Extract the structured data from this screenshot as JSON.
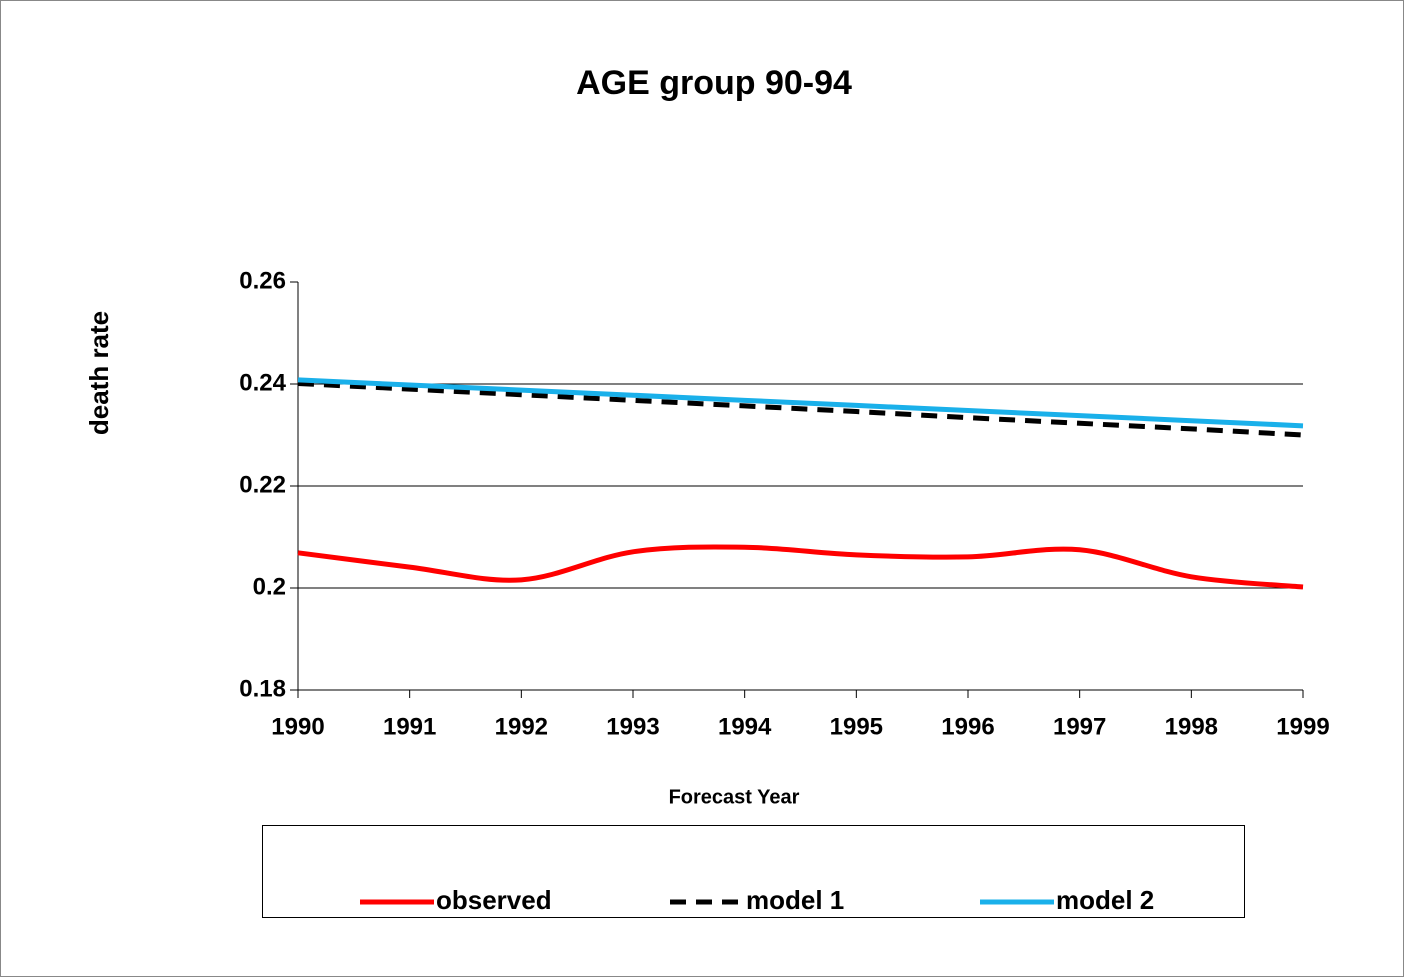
{
  "chart_data": {
    "type": "line",
    "title": "AGE group 90-94",
    "x_label": "Forecast Year",
    "y_label": "death rate",
    "x": [
      1990,
      1991,
      1992,
      1993,
      1994,
      1995,
      1996,
      1997,
      1998,
      1999
    ],
    "xlim": [
      1990,
      1999
    ],
    "xticks": [
      1990,
      1991,
      1992,
      1993,
      1994,
      1995,
      1996,
      1997,
      1998,
      1999
    ],
    "ylim": [
      0.18,
      0.26
    ],
    "yticks": [
      0.18,
      0.2,
      0.22,
      0.24,
      0.26
    ],
    "grid": true,
    "legend": "bottom",
    "series": [
      {
        "name": "observed",
        "color": "#ff0000",
        "dash": false,
        "smooth": true,
        "values": [
          0.2069,
          0.2041,
          0.2016,
          0.2071,
          0.208,
          0.2065,
          0.2061,
          0.2075,
          0.2022,
          0.2002
        ]
      },
      {
        "name": "model 1",
        "color": "#000000",
        "dash": true,
        "smooth": false,
        "values": [
          0.2401,
          0.239,
          0.2379,
          0.2368,
          0.2357,
          0.2346,
          0.2334,
          0.2323,
          0.2312,
          0.23
        ]
      },
      {
        "name": "model 2",
        "color": "#1ab0ea",
        "dash": false,
        "smooth": false,
        "values": [
          0.2408,
          0.2398,
          0.2388,
          0.2378,
          0.2368,
          0.2358,
          0.2348,
          0.2338,
          0.2328,
          0.2318
        ]
      }
    ]
  }
}
